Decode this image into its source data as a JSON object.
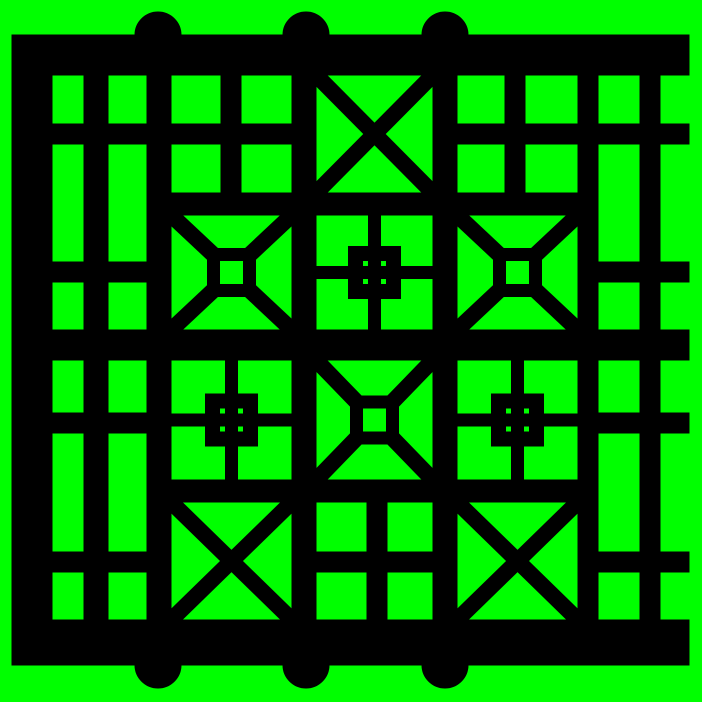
{
  "colors": {
    "background": "#00ff00",
    "foreground": "#000000"
  },
  "icon": "lattice-pattern-icon"
}
